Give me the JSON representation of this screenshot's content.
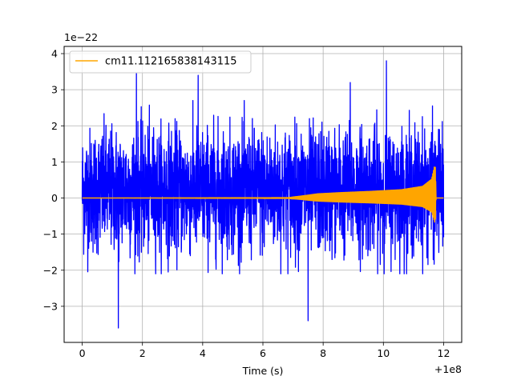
{
  "chart_data": {
    "type": "line",
    "title": "",
    "xlabel": "Time (s)",
    "ylabel": "",
    "x_offset_text": "+1e8",
    "y_scale_text": "1e−22",
    "xlim": [
      -0.6,
      12.6
    ],
    "ylim": [
      -4.0,
      4.2
    ],
    "x_ticks": [
      0,
      2,
      4,
      6,
      8,
      10,
      12
    ],
    "x_tick_labels": [
      "0",
      "2",
      "4",
      "6",
      "8",
      "10",
      "12"
    ],
    "y_ticks": [
      -3,
      -2,
      -1,
      0,
      1,
      2,
      3,
      4
    ],
    "y_tick_labels": [
      "−3",
      "−2",
      "−1",
      "0",
      "1",
      "2",
      "3",
      "4"
    ],
    "grid": true,
    "legend": {
      "location": "upper-left",
      "entries": [
        "cm11.112165838143115"
      ]
    },
    "series": [
      {
        "style": "noise",
        "color": "#0000ff",
        "x_range": [
          0,
          12
        ],
        "typical_range": [
          -1.7,
          2.1
        ],
        "extremes": [
          {
            "x": 1.2,
            "y": -3.6
          },
          {
            "x": 1.8,
            "y": 3.45
          },
          {
            "x": 3.85,
            "y": 3.4
          },
          {
            "x": 7.5,
            "y": -3.4
          },
          {
            "x": 10.1,
            "y": 3.8
          },
          {
            "x": 8.9,
            "y": 3.2
          }
        ]
      },
      {
        "name": "cm11.112165838143115",
        "style": "chirp",
        "color": "#ffa500",
        "x_range": [
          0,
          11.75
        ],
        "merger_time": 11.72,
        "merger_peak": [
          0.85,
          -0.58
        ],
        "envelope": [
          {
            "x": 0,
            "y": 0
          },
          {
            "x": 6.8,
            "y": 0.01
          },
          {
            "x": 7.2,
            "y": 0.04
          },
          {
            "x": 7.8,
            "y": 0.1
          },
          {
            "x": 8.6,
            "y": 0.13
          },
          {
            "x": 9.6,
            "y": 0.16
          },
          {
            "x": 10.6,
            "y": 0.2
          },
          {
            "x": 11.3,
            "y": 0.28
          },
          {
            "x": 11.6,
            "y": 0.45
          },
          {
            "x": 11.72,
            "y": 0.85
          },
          {
            "x": 11.75,
            "y": 0
          }
        ]
      }
    ]
  }
}
